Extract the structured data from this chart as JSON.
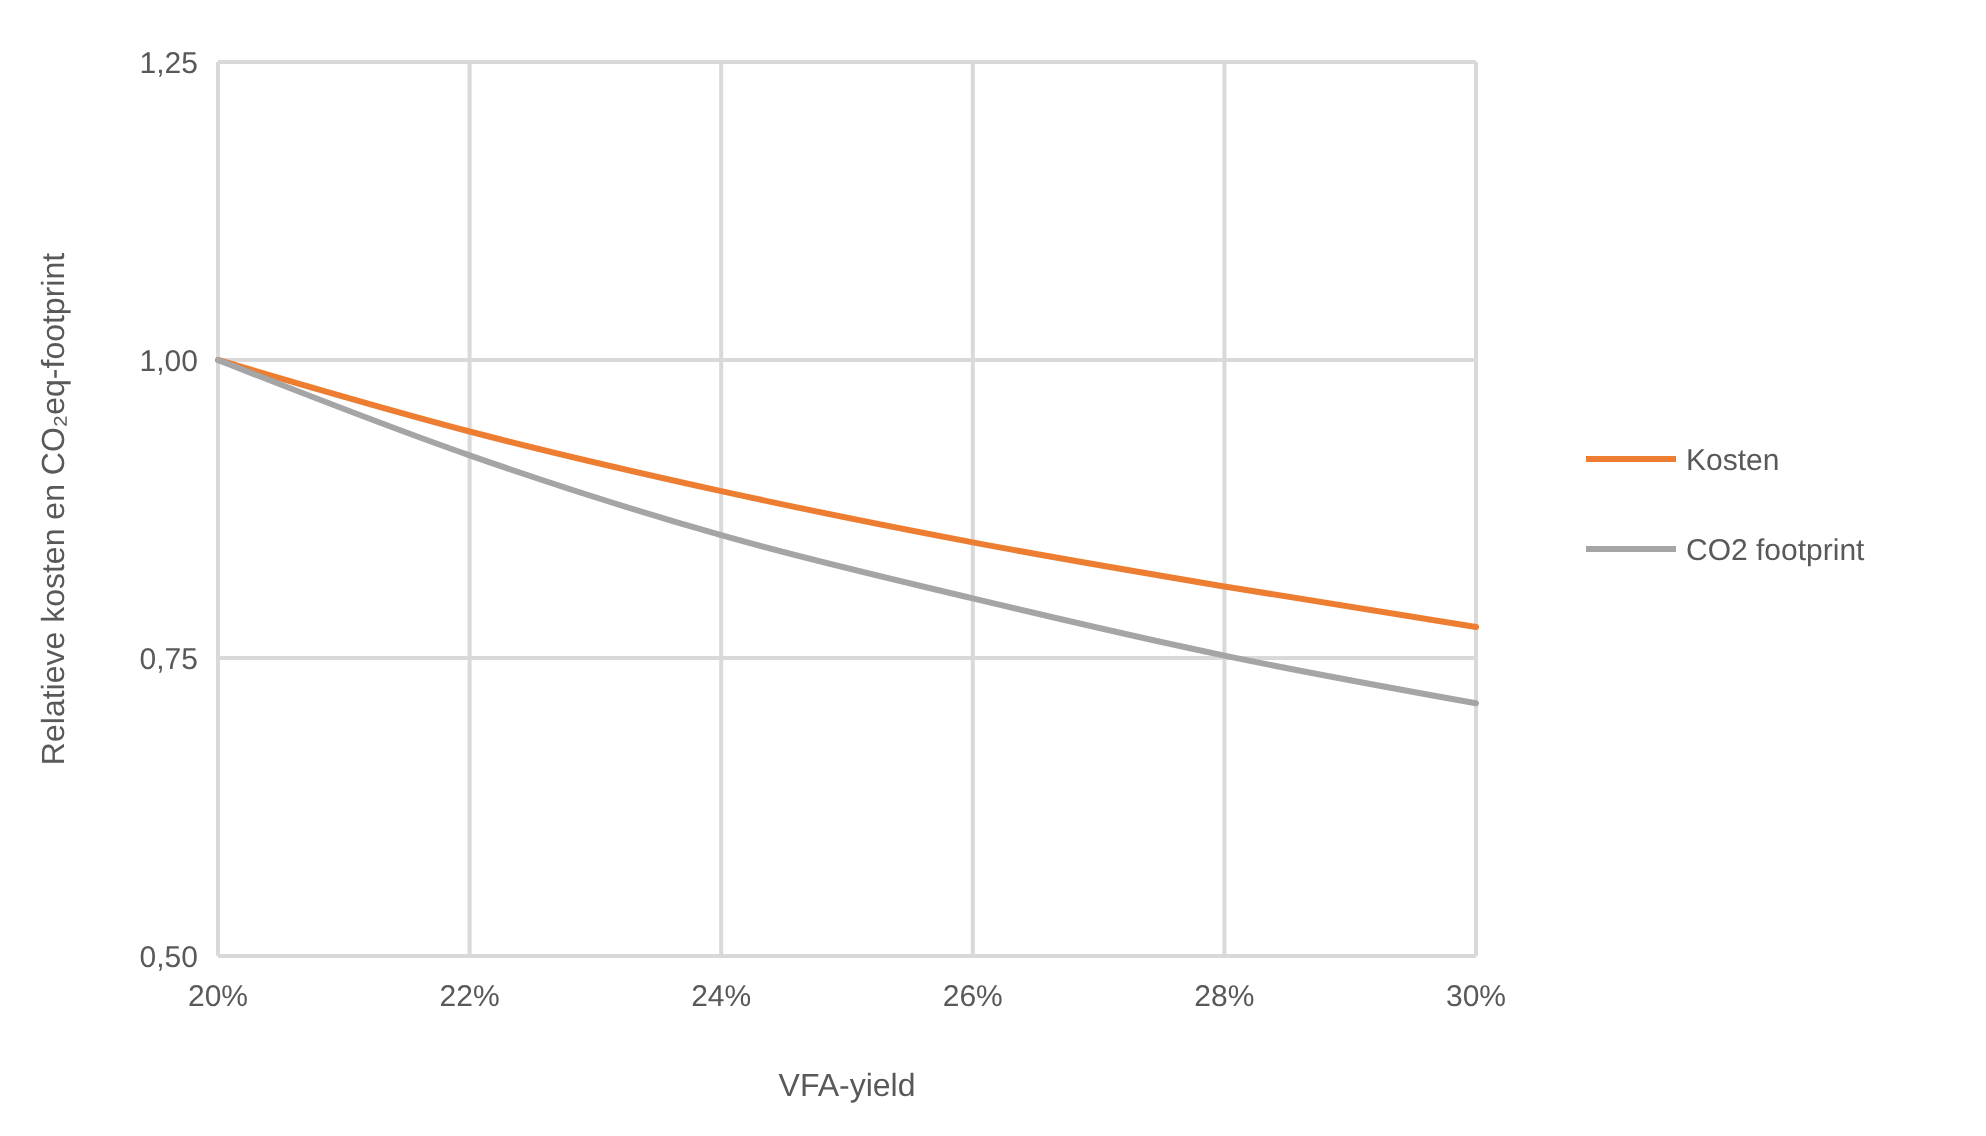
{
  "chart_data": {
    "type": "line",
    "xlabel": "VFA-yield",
    "ylabel": "Relatieve kosten en CO₂eq-footprint",
    "x": [
      20,
      22,
      24,
      26,
      28,
      30
    ],
    "series": [
      {
        "name": "Kosten",
        "color": "#ed7d31",
        "values": [
          1.0,
          0.94,
          0.89,
          0.847,
          0.81,
          0.776
        ]
      },
      {
        "name": "CO2 footprint",
        "color": "#a5a5a5",
        "values": [
          1.0,
          0.92,
          0.853,
          0.8,
          0.752,
          0.712
        ]
      }
    ],
    "xlim": [
      20,
      30
    ],
    "xticks": [
      {
        "value": 20,
        "label": "20%"
      },
      {
        "value": 22,
        "label": "22%"
      },
      {
        "value": 24,
        "label": "24%"
      },
      {
        "value": 26,
        "label": "26%"
      },
      {
        "value": 28,
        "label": "28%"
      },
      {
        "value": 30,
        "label": "30%"
      }
    ],
    "ylim": [
      0.5,
      1.25
    ],
    "yticks": [
      {
        "value": 0.5,
        "label": "0,50"
      },
      {
        "value": 0.75,
        "label": "0,75"
      },
      {
        "value": 1,
        "label": "1,00"
      },
      {
        "value": 1.25,
        "label": "1,25"
      }
    ],
    "grid": true,
    "legend": "right",
    "line_style": "solid",
    "marker": "none"
  }
}
